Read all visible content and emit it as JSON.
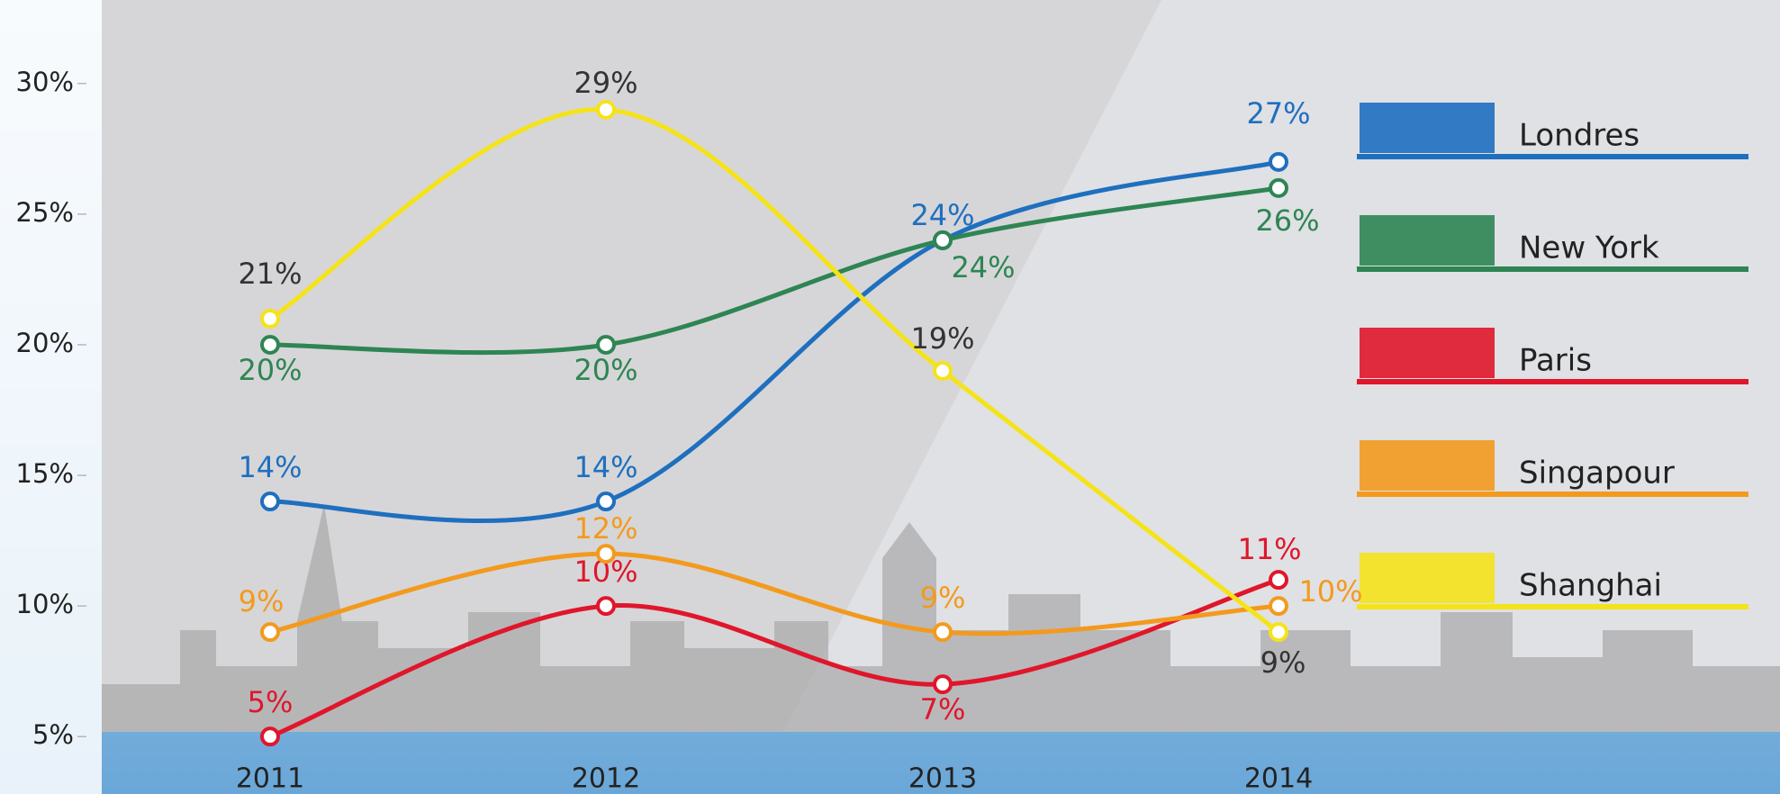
{
  "chart_data": {
    "type": "line",
    "categories": [
      "2011",
      "2012",
      "2013",
      "2014"
    ],
    "ylim": [
      2.8,
      33.2
    ],
    "yticks": [
      {
        "value": 5,
        "label": "5%"
      },
      {
        "value": 10,
        "label": "10%"
      },
      {
        "value": 15,
        "label": "15%"
      },
      {
        "value": 20,
        "label": "20%"
      },
      {
        "value": 25,
        "label": "25%"
      },
      {
        "value": 30,
        "label": "30%"
      }
    ],
    "series": [
      {
        "name": "Londres",
        "color": "#1f6fbf",
        "values": [
          14,
          14,
          24,
          27
        ],
        "value_labels": [
          "14%",
          "14%",
          "24%",
          "27%"
        ]
      },
      {
        "name": "New York",
        "color": "#2e8553",
        "values": [
          20,
          20,
          24,
          26
        ],
        "value_labels": [
          "20%",
          "20%",
          "24%",
          "26%"
        ]
      },
      {
        "name": "Paris",
        "color": "#e0162b",
        "values": [
          5,
          10,
          7,
          11
        ],
        "value_labels": [
          "5%",
          "10%",
          "7%",
          "11%"
        ]
      },
      {
        "name": "Singapour",
        "color": "#f39a1e",
        "values": [
          9,
          12,
          9,
          10
        ],
        "value_labels": [
          "9%",
          "12%",
          "9%",
          "10%"
        ]
      },
      {
        "name": "Shanghai",
        "color": "#f5e31a",
        "values": [
          21,
          29,
          19,
          9
        ],
        "value_labels": [
          "21%",
          "29%",
          "19%",
          "9%"
        ]
      }
    ]
  }
}
